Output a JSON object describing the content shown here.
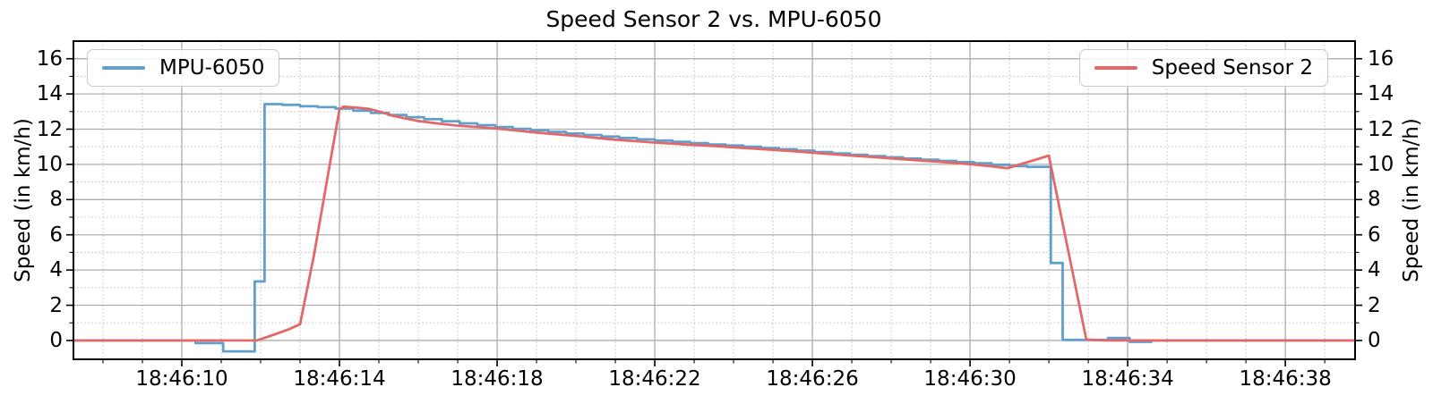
{
  "title": "Speed Sensor 2 vs. MPU-6050",
  "colors": {
    "mpu_blue": "#62a0cb",
    "sensor_red": "#e26869",
    "grid_major": "#adadad",
    "grid_minor": "#c3c3c3",
    "axis": "#000000"
  },
  "legend_left": {
    "label": "MPU-6050",
    "color": "#62a0cb"
  },
  "legend_right": {
    "label": "Speed Sensor 2",
    "color": "#e26869"
  },
  "chart_data": {
    "type": "line",
    "title": "Speed Sensor 2 vs. MPU-6050",
    "xlabel": "",
    "ylabel_left": "Speed (in km/h)",
    "ylabel_right": "Speed (in km/h)",
    "x_unit_note": "x values are seconds after 18:46:00",
    "xlim": [
      7.25,
      39.77
    ],
    "ylim": [
      -1.07,
      17.0
    ],
    "grid": "major solid, minor dotted, both axes",
    "legend_positions": [
      "upper left",
      "upper right"
    ],
    "x_major_ticks": [
      {
        "t": 10,
        "label": "18:46:10"
      },
      {
        "t": 14,
        "label": "18:46:14"
      },
      {
        "t": 18,
        "label": "18:46:18"
      },
      {
        "t": 22,
        "label": "18:46:22"
      },
      {
        "t": 26,
        "label": "18:46:26"
      },
      {
        "t": 30,
        "label": "18:46:30"
      },
      {
        "t": 34,
        "label": "18:46:34"
      },
      {
        "t": 38,
        "label": "18:46:38"
      }
    ],
    "x_minor_step": 1,
    "y_major_ticks": [
      0,
      2,
      4,
      6,
      8,
      10,
      12,
      14,
      16
    ],
    "y_minor_step": 1,
    "series": [
      {
        "name": "MPU-6050",
        "color": "#62a0cb",
        "style": "steps-post",
        "points": [
          [
            7.25,
            0
          ],
          [
            10.35,
            -0.15
          ],
          [
            11.05,
            -0.62
          ],
          [
            11.85,
            3.35
          ],
          [
            12.1,
            13.42
          ],
          [
            12.55,
            13.38
          ],
          [
            13.0,
            13.3
          ],
          [
            13.45,
            13.25
          ],
          [
            13.9,
            13.17
          ],
          [
            14.35,
            13.05
          ],
          [
            14.8,
            12.92
          ],
          [
            15.25,
            12.8
          ],
          [
            15.7,
            12.68
          ],
          [
            16.15,
            12.57
          ],
          [
            16.6,
            12.45
          ],
          [
            17.05,
            12.33
          ],
          [
            17.5,
            12.23
          ],
          [
            17.95,
            12.12
          ],
          [
            18.4,
            12.02
          ],
          [
            18.85,
            11.93
          ],
          [
            19.3,
            11.85
          ],
          [
            19.75,
            11.75
          ],
          [
            20.2,
            11.67
          ],
          [
            20.65,
            11.58
          ],
          [
            21.1,
            11.5
          ],
          [
            21.55,
            11.42
          ],
          [
            22.0,
            11.35
          ],
          [
            22.45,
            11.28
          ],
          [
            22.9,
            11.21
          ],
          [
            23.35,
            11.13
          ],
          [
            23.8,
            11.07
          ],
          [
            24.25,
            11.0
          ],
          [
            24.7,
            10.93
          ],
          [
            25.15,
            10.86
          ],
          [
            25.6,
            10.78
          ],
          [
            26.05,
            10.7
          ],
          [
            26.5,
            10.62
          ],
          [
            26.95,
            10.55
          ],
          [
            27.4,
            10.47
          ],
          [
            27.85,
            10.4
          ],
          [
            28.3,
            10.33
          ],
          [
            28.75,
            10.27
          ],
          [
            29.2,
            10.2
          ],
          [
            29.65,
            10.13
          ],
          [
            30.1,
            10.06
          ],
          [
            30.55,
            9.98
          ],
          [
            31.0,
            9.9
          ],
          [
            31.45,
            9.86
          ],
          [
            32.05,
            4.4
          ],
          [
            32.35,
            0.03
          ],
          [
            33.5,
            0.14
          ],
          [
            34.05,
            -0.08
          ],
          [
            34.6,
            0.0
          ],
          [
            39.77,
            0.0
          ]
        ]
      },
      {
        "name": "Speed Sensor 2",
        "color": "#e26869",
        "style": "linear",
        "points": [
          [
            7.25,
            0.0
          ],
          [
            11.9,
            0.0
          ],
          [
            12.3,
            0.3
          ],
          [
            12.7,
            0.62
          ],
          [
            13.0,
            0.92
          ],
          [
            13.35,
            4.8
          ],
          [
            13.7,
            9.3
          ],
          [
            14.0,
            13.1
          ],
          [
            14.1,
            13.28
          ],
          [
            14.45,
            13.22
          ],
          [
            14.75,
            13.15
          ],
          [
            15.05,
            12.98
          ],
          [
            15.35,
            12.76
          ],
          [
            15.7,
            12.6
          ],
          [
            16.0,
            12.46
          ],
          [
            16.5,
            12.32
          ],
          [
            17.0,
            12.2
          ],
          [
            17.5,
            12.12
          ],
          [
            18.0,
            12.03
          ],
          [
            18.5,
            11.92
          ],
          [
            19.0,
            11.8
          ],
          [
            19.5,
            11.71
          ],
          [
            20.0,
            11.62
          ],
          [
            20.5,
            11.51
          ],
          [
            21.0,
            11.4
          ],
          [
            21.5,
            11.32
          ],
          [
            22.0,
            11.24
          ],
          [
            22.5,
            11.17
          ],
          [
            23.0,
            11.1
          ],
          [
            23.5,
            11.04
          ],
          [
            24.0,
            10.97
          ],
          [
            24.5,
            10.9
          ],
          [
            25.0,
            10.83
          ],
          [
            25.5,
            10.75
          ],
          [
            26.0,
            10.66
          ],
          [
            26.5,
            10.58
          ],
          [
            27.0,
            10.5
          ],
          [
            27.5,
            10.42
          ],
          [
            28.0,
            10.34
          ],
          [
            28.5,
            10.26
          ],
          [
            29.0,
            10.18
          ],
          [
            29.5,
            10.1
          ],
          [
            30.0,
            10.01
          ],
          [
            30.5,
            9.9
          ],
          [
            30.95,
            9.78
          ],
          [
            32.0,
            10.5
          ],
          [
            32.95,
            0.05
          ],
          [
            33.4,
            0.0
          ],
          [
            39.77,
            0.0
          ]
        ]
      }
    ]
  }
}
